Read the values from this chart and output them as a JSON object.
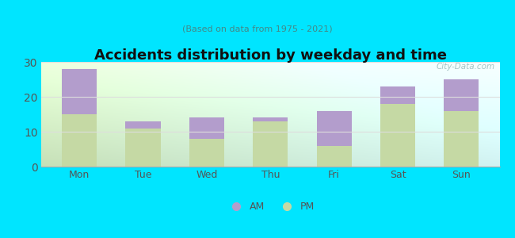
{
  "categories": [
    "Mon",
    "Tue",
    "Wed",
    "Thu",
    "Fri",
    "Sat",
    "Sun"
  ],
  "pm_values": [
    15,
    11,
    8,
    13,
    6,
    18,
    16
  ],
  "am_values": [
    13,
    2,
    6,
    1,
    10,
    5,
    9
  ],
  "am_color": "#b39dcc",
  "pm_color": "#c5d9a4",
  "title": "Accidents distribution by weekday and time",
  "subtitle": "(Based on data from 1975 - 2021)",
  "ylim": [
    0,
    30
  ],
  "yticks": [
    0,
    10,
    20,
    30
  ],
  "bg_color": "#00e5ff",
  "legend_am": "AM",
  "legend_pm": "PM",
  "watermark": "City-Data.com",
  "grid_color": "#dddddd",
  "tick_color": "#555555",
  "title_color": "#111111",
  "subtitle_color": "#448888"
}
